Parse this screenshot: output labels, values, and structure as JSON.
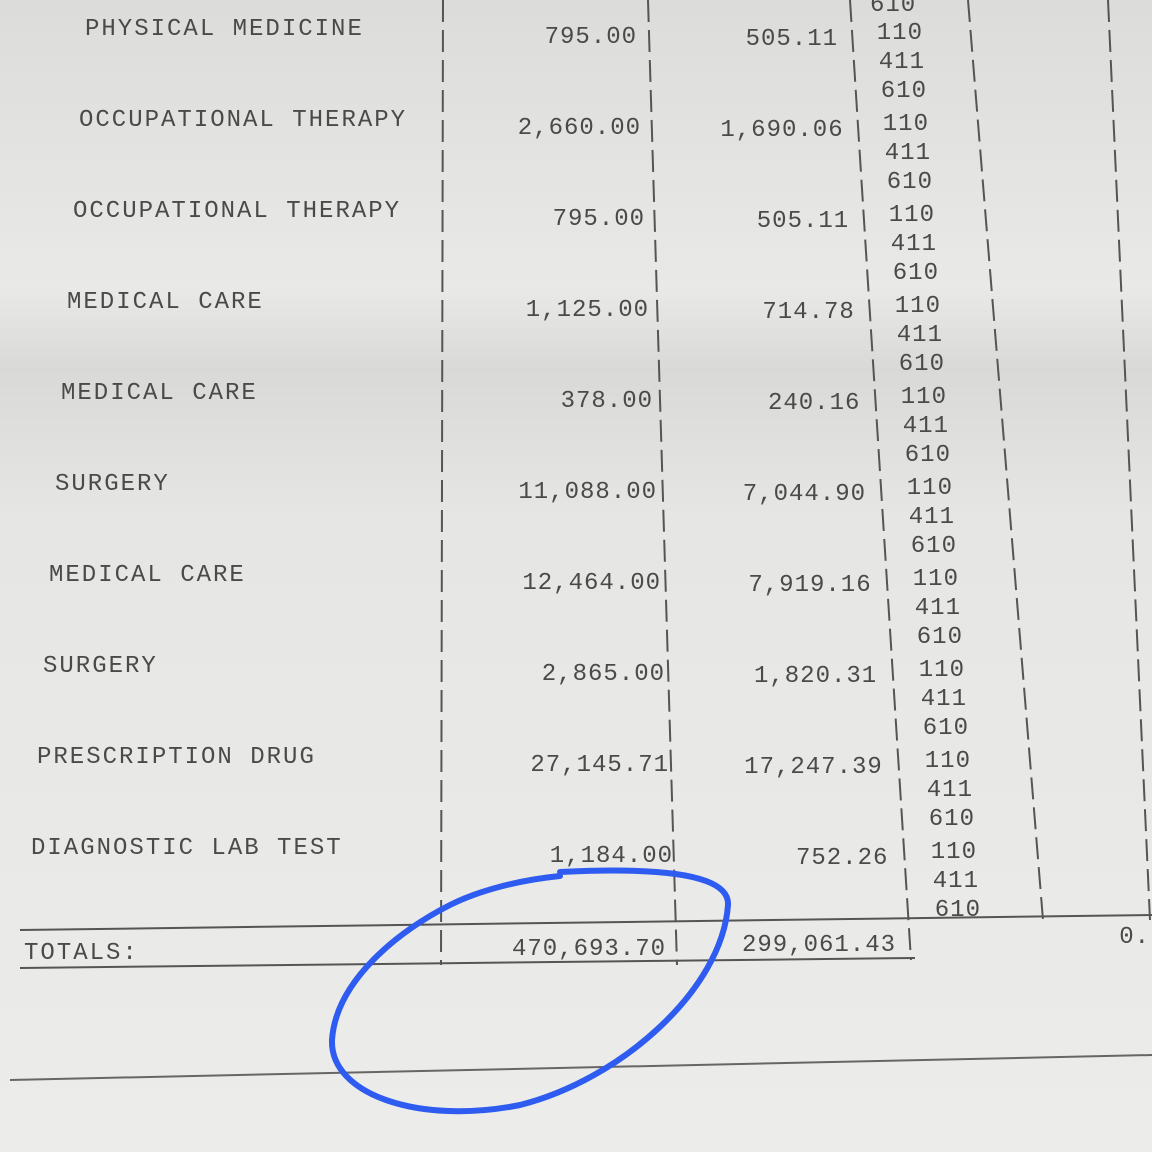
{
  "top_code": "610",
  "rows": [
    {
      "description": "PHYSICAL MEDICINE",
      "billed": "795.00",
      "paid": "505.11",
      "codes": [
        "110",
        "411",
        "610"
      ]
    },
    {
      "description": "OCCUPATIONAL THERAPY",
      "billed": "2,660.00",
      "paid": "1,690.06",
      "codes": [
        "110",
        "411",
        "610"
      ]
    },
    {
      "description": "OCCUPATIONAL THERAPY",
      "billed": "795.00",
      "paid": "505.11",
      "codes": [
        "110",
        "411",
        "610"
      ]
    },
    {
      "description": "MEDICAL CARE",
      "billed": "1,125.00",
      "paid": "714.78",
      "codes": [
        "110",
        "411",
        "610"
      ]
    },
    {
      "description": "MEDICAL CARE",
      "billed": "378.00",
      "paid": "240.16",
      "codes": [
        "110",
        "411",
        "610"
      ]
    },
    {
      "description": "SURGERY",
      "billed": "11,088.00",
      "paid": "7,044.90",
      "codes": [
        "110",
        "411",
        "610"
      ]
    },
    {
      "description": "MEDICAL CARE",
      "billed": "12,464.00",
      "paid": "7,919.16",
      "codes": [
        "110",
        "411",
        "610"
      ]
    },
    {
      "description": "SURGERY",
      "billed": "2,865.00",
      "paid": "1,820.31",
      "codes": [
        "110",
        "411",
        "610"
      ]
    },
    {
      "description": "PRESCRIPTION DRUG",
      "billed": "27,145.71",
      "paid": "17,247.39",
      "codes": [
        "110",
        "411",
        "610"
      ]
    },
    {
      "description": "DIAGNOSTIC LAB TEST",
      "billed": "1,184.00",
      "paid": "752.26",
      "codes": [
        "110",
        "411",
        "610"
      ]
    }
  ],
  "totals": {
    "label": "TOTALS:",
    "billed": "470,693.70",
    "paid": "299,061.43",
    "other": "0."
  }
}
